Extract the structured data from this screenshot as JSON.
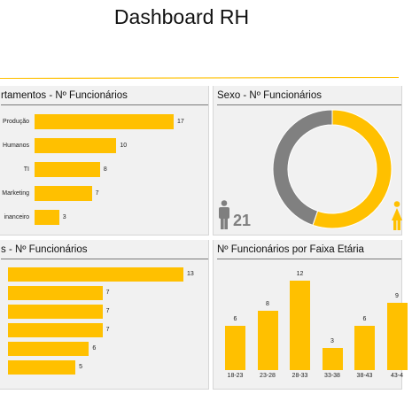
{
  "page_title": "Dashboard RH",
  "colors": {
    "accent": "#FFC000",
    "gray": "#808080"
  },
  "panels": {
    "departamentos": {
      "title": "rtamentos - Nº Funcionários",
      "items": [
        {
          "label": "Produção",
          "value": 17
        },
        {
          "label": "Humanos",
          "value": 10
        },
        {
          "label": "TI",
          "value": 8
        },
        {
          "label": "Marketing",
          "value": 7
        },
        {
          "label": "inanceiro",
          "value": 3
        }
      ]
    },
    "sexo": {
      "title": "Sexo - Nº Funcionários",
      "male_count": "21",
      "male_icon": "male-person-icon",
      "female_icon": "female-person-icon"
    },
    "cargos": {
      "title": "s - Nº Funcionários",
      "items": [
        {
          "value": 13
        },
        {
          "value": 7
        },
        {
          "value": 7
        },
        {
          "value": 7
        },
        {
          "value": 6
        },
        {
          "value": 5
        }
      ]
    },
    "faixa": {
      "title": "Nº Funcionários por Faixa Etária"
    }
  },
  "chart_data": [
    {
      "type": "bar",
      "orientation": "horizontal",
      "title": "rtamentos - Nº Funcionários",
      "categories": [
        "Produção",
        "Humanos",
        "TI",
        "Marketing",
        "inanceiro"
      ],
      "values": [
        17,
        10,
        8,
        7,
        3
      ],
      "xlim": [
        0,
        17
      ]
    },
    {
      "type": "pie",
      "title": "Sexo - Nº Funcionários",
      "slices": [
        {
          "value": 21,
          "color": "#808080"
        },
        {
          "value": 26,
          "color": "#FFC000"
        }
      ]
    },
    {
      "type": "bar",
      "orientation": "horizontal",
      "title": "s - Nº Funcionários",
      "values": [
        13,
        7,
        7,
        7,
        6,
        5
      ],
      "xlim": [
        0,
        13
      ]
    },
    {
      "type": "bar",
      "title": "Nº Funcionários por Faixa Etária",
      "categories": [
        "18-23",
        "23-28",
        "28-33",
        "33-38",
        "38-43",
        "43-4"
      ],
      "values": [
        6,
        8,
        12,
        3,
        6,
        9
      ],
      "ylim": [
        0,
        12
      ]
    }
  ]
}
